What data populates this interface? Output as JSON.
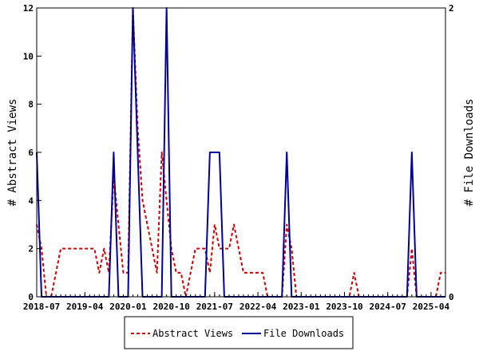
{
  "chart_data": {
    "type": "line",
    "xlabel": "",
    "ylabel": "# Abstract Views",
    "y2label": "# File Downloads",
    "ylim": [
      0,
      12
    ],
    "y2lim": [
      0,
      2
    ],
    "y_ticks": [
      "0",
      "2",
      "4",
      "6",
      "8",
      "10",
      "12"
    ],
    "y2_ticks": [
      "0",
      "2"
    ],
    "x_tick_labels": [
      "2018-07",
      "2019-04",
      "2020-01",
      "2020-10",
      "2021-07",
      "2022-04",
      "2023-01",
      "2023-10",
      "2024-07",
      "2025-04"
    ],
    "x_start": "2018-06",
    "x_months": 86,
    "grid": false,
    "legend": "bottom-center",
    "colors": {
      "abstract_views": "#cc0000",
      "file_downloads": "#000099"
    },
    "series": [
      {
        "name": "Abstract Views",
        "axis": "left",
        "style": "dashed",
        "values": [
          3,
          2,
          0,
          0,
          1,
          2,
          2,
          2,
          2,
          2,
          2,
          2,
          2,
          1,
          2,
          1,
          5,
          3,
          1,
          1,
          12,
          7,
          4,
          3,
          2,
          1,
          6,
          4,
          2,
          1,
          1,
          0,
          1,
          2,
          2,
          2,
          1,
          3,
          2,
          2,
          2,
          3,
          2,
          1,
          1,
          1,
          1,
          1,
          0,
          0,
          0,
          0,
          3,
          2,
          0,
          0,
          0,
          0,
          0,
          0,
          0,
          0,
          0,
          0,
          0,
          0,
          1,
          0,
          0,
          0,
          0,
          0,
          0,
          0,
          0,
          0,
          0,
          0,
          2,
          0,
          0,
          0,
          0,
          0,
          1,
          1
        ]
      },
      {
        "name": "File Downloads",
        "axis": "right",
        "style": "solid",
        "values": [
          1,
          0,
          0,
          0,
          0,
          0,
          0,
          0,
          0,
          0,
          0,
          0,
          0,
          0,
          0,
          0,
          1,
          0,
          0,
          0,
          2,
          1,
          0,
          0,
          0,
          0,
          0,
          2,
          0,
          0,
          0,
          0,
          0,
          0,
          0,
          0,
          1,
          1,
          1,
          0,
          0,
          0,
          0,
          0,
          0,
          0,
          0,
          0,
          0,
          0,
          0,
          0,
          1,
          0,
          0,
          0,
          0,
          0,
          0,
          0,
          0,
          0,
          0,
          0,
          0,
          0,
          0,
          0,
          0,
          0,
          0,
          0,
          0,
          0,
          0,
          0,
          0,
          0,
          1,
          0,
          0,
          0,
          0,
          0,
          0,
          0
        ]
      }
    ]
  }
}
